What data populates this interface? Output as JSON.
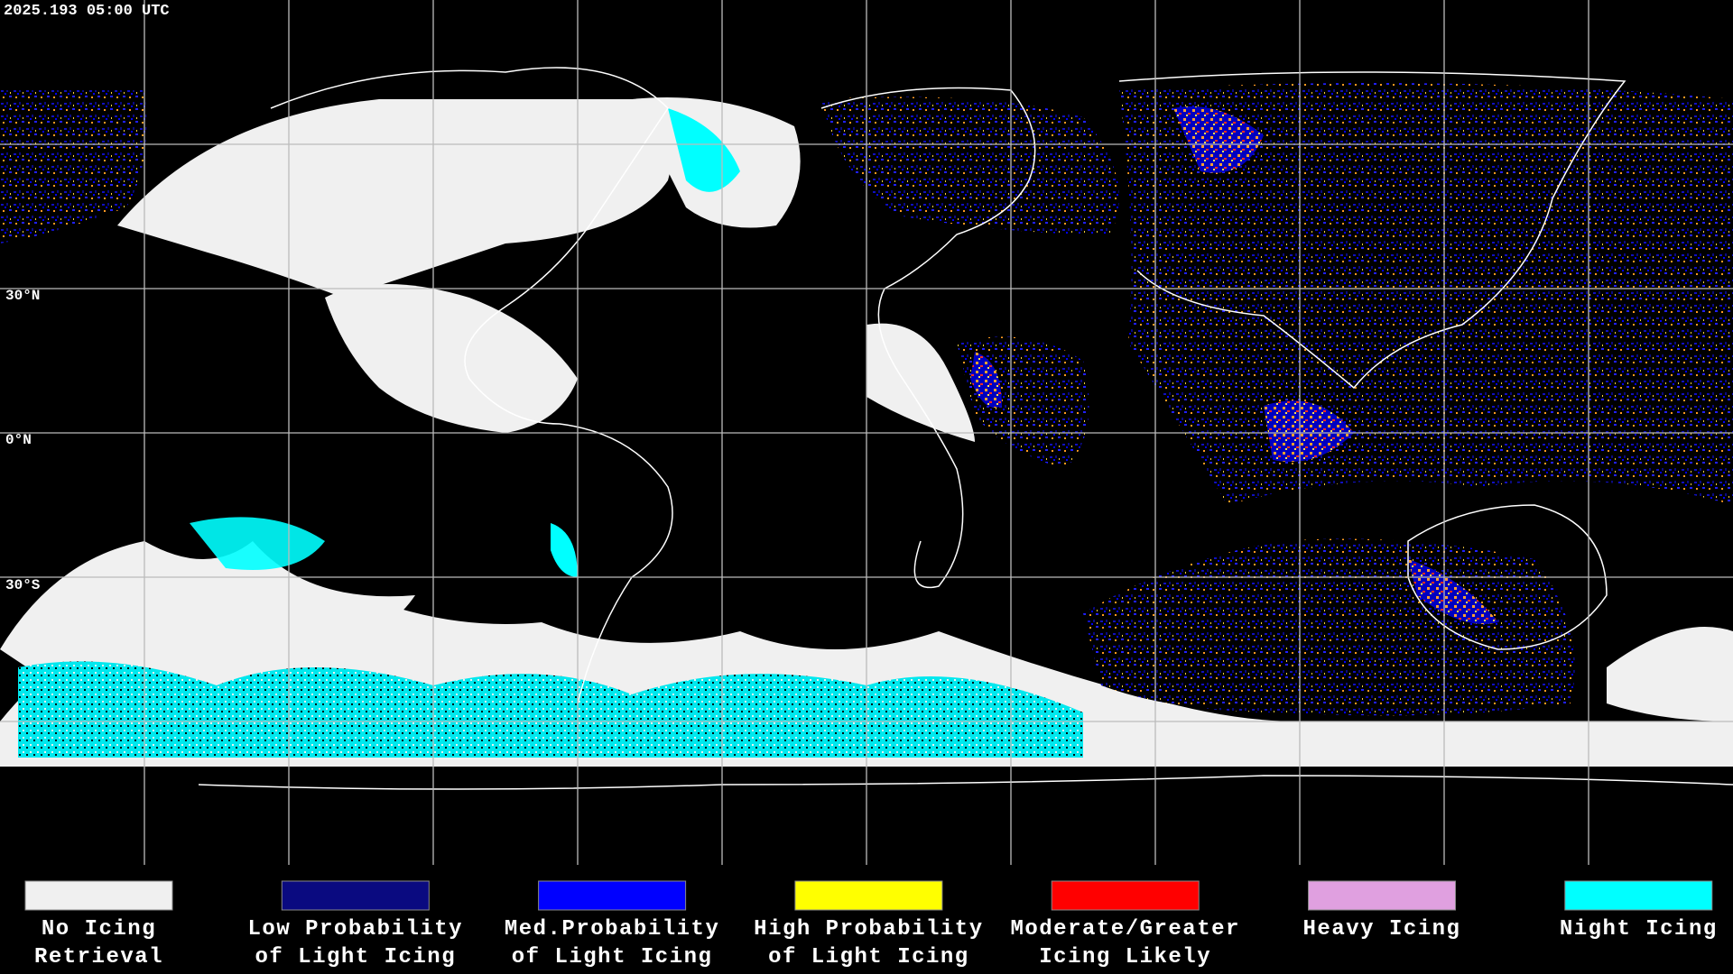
{
  "header": {
    "timestamp": "2025.193 05:00 UTC"
  },
  "map": {
    "latitude_labels": [
      "30°N",
      "0°N",
      "30°S"
    ]
  },
  "legend": {
    "items": [
      {
        "label": [
          "No Icing",
          "Retrieval"
        ],
        "color": "#f0f0f0"
      },
      {
        "label": [
          "Low Probability",
          "of Light Icing"
        ],
        "color": "#0a0a80"
      },
      {
        "label": [
          "Med.Probability",
          "of Light Icing"
        ],
        "color": "#0000ff"
      },
      {
        "label": [
          "High Probability",
          "of Light Icing"
        ],
        "color": "#ffff00"
      },
      {
        "label": [
          "Moderate/Greater",
          "Icing Likely"
        ],
        "color": "#ff0000"
      },
      {
        "label": [
          "Heavy Icing",
          ""
        ],
        "color": "#e0a0e0"
      },
      {
        "label": [
          "Night Icing",
          ""
        ],
        "color": "#00ffff"
      }
    ]
  }
}
